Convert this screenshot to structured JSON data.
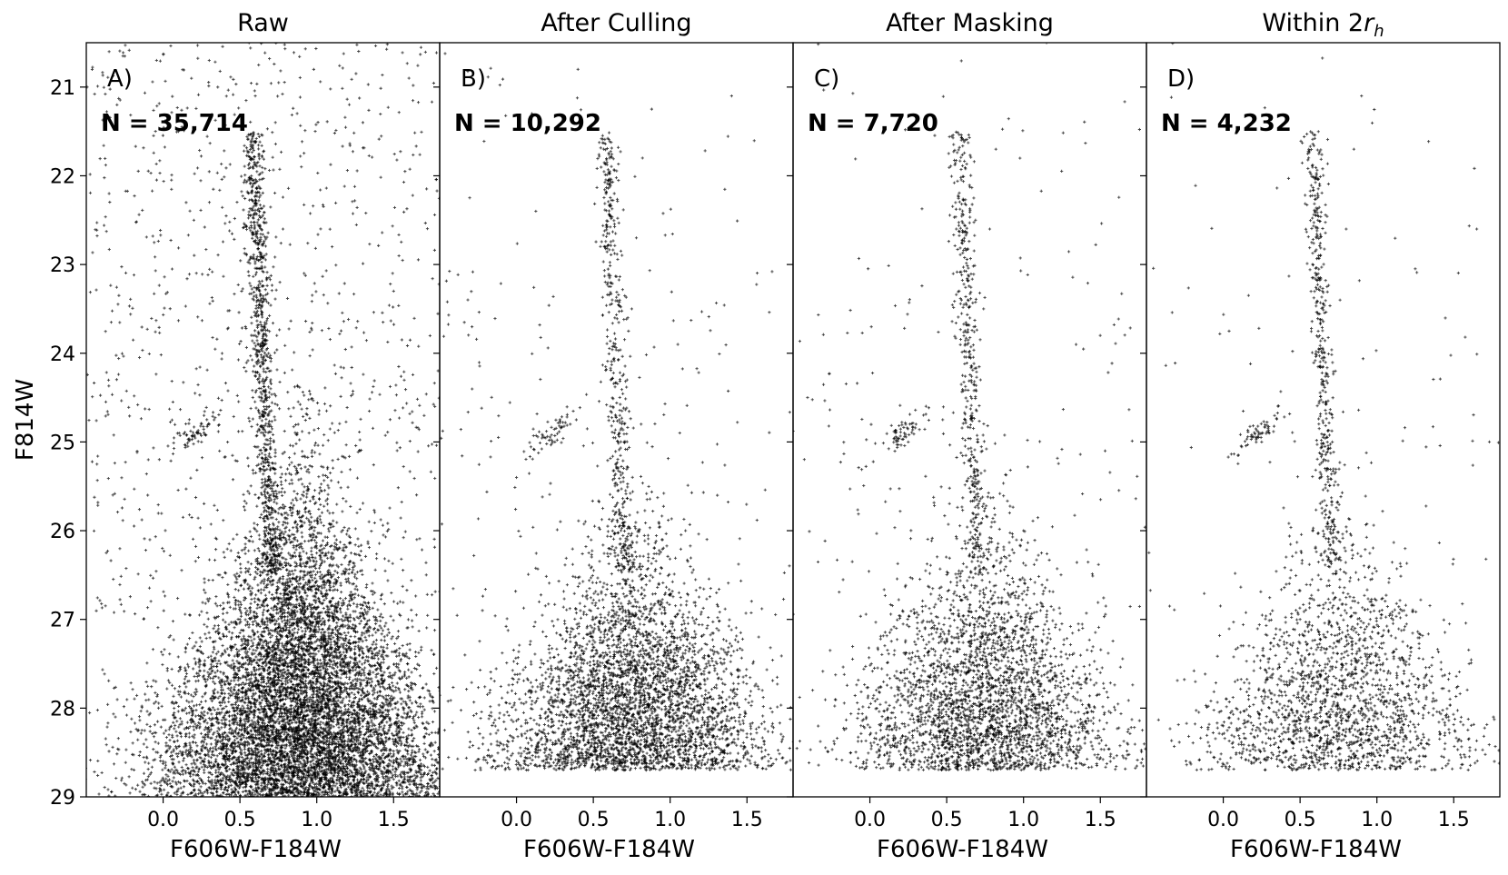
{
  "chart_data": [
    {
      "type": "scatter",
      "panel_title": "Raw",
      "label": "A)",
      "count_text": "N = 35,714",
      "xlabel": "F606W-F184W",
      "ylabel": "F814W",
      "xlim": [
        -0.5,
        1.8
      ],
      "ylim": [
        29.0,
        20.5
      ],
      "y_inverted": true,
      "xticks": [
        "0.0",
        "0.5",
        "1.0",
        "1.5"
      ],
      "yticks": [
        "21",
        "22",
        "23",
        "24",
        "25",
        "26",
        "27",
        "28",
        "29"
      ],
      "marker": "+",
      "color": "#000000",
      "sample_points": [
        [
          -0.3,
          21.2
        ],
        [
          0.1,
          21.5
        ],
        [
          0.3,
          20.7
        ],
        [
          0.6,
          21.1
        ],
        [
          0.9,
          21.9
        ],
        [
          1.3,
          21.4
        ],
        [
          1.6,
          20.9
        ],
        [
          0.2,
          22.5
        ],
        [
          1.1,
          22.8
        ],
        [
          1.5,
          23.3
        ],
        [
          0.78,
          22.6
        ],
        [
          0.76,
          23.2
        ],
        [
          0.74,
          23.8
        ],
        [
          0.7,
          24.4
        ],
        [
          0.72,
          25.0
        ],
        [
          0.25,
          25.0
        ],
        [
          0.3,
          24.8
        ],
        [
          -0.1,
          25.6
        ],
        [
          0.4,
          26.3
        ],
        [
          0.7,
          26.0
        ],
        [
          1.2,
          26.0
        ],
        [
          0.5,
          27.0
        ],
        [
          0.9,
          27.2
        ],
        [
          1.4,
          27.5
        ],
        [
          0.3,
          28.0
        ],
        [
          0.7,
          28.2
        ],
        [
          1.1,
          28.3
        ],
        [
          1.6,
          28.1
        ],
        [
          0.0,
          28.6
        ],
        [
          0.5,
          28.7
        ],
        [
          0.9,
          28.8
        ],
        [
          1.3,
          28.6
        ],
        [
          -0.2,
          28.9
        ],
        [
          1.7,
          28.4
        ]
      ]
    },
    {
      "type": "scatter",
      "panel_title": "After Culling",
      "label": "B)",
      "count_text": "N = 10,292",
      "xlabel": "F606W-F184W",
      "xlim": [
        -0.5,
        1.8
      ],
      "ylim": [
        29.0,
        20.5
      ],
      "y_inverted": true,
      "xticks": [
        "0.0",
        "0.5",
        "1.0",
        "1.5"
      ],
      "marker": "+",
      "color": "#000000",
      "sample_points": [
        [
          0.1,
          21.3
        ],
        [
          0.4,
          20.8
        ],
        [
          1.4,
          21.1
        ],
        [
          0.82,
          21.8
        ],
        [
          0.78,
          22.7
        ],
        [
          0.75,
          23.5
        ],
        [
          0.72,
          24.3
        ],
        [
          0.7,
          25.0
        ],
        [
          0.25,
          25.0
        ],
        [
          0.35,
          24.8
        ],
        [
          0.0,
          25.4
        ],
        [
          0.6,
          26.2
        ],
        [
          1.1,
          26.0
        ],
        [
          0.5,
          27.0
        ],
        [
          0.9,
          27.3
        ],
        [
          1.4,
          27.3
        ],
        [
          0.2,
          28.1
        ],
        [
          0.6,
          28.3
        ],
        [
          1.0,
          28.1
        ],
        [
          0.4,
          28.6
        ],
        [
          0.7,
          28.7
        ],
        [
          -0.1,
          28.4
        ],
        [
          1.6,
          27.8
        ]
      ]
    },
    {
      "type": "scatter",
      "panel_title": "After Masking",
      "label": "C)",
      "count_text": "N = 7,720",
      "xlabel": "F606W-F184W",
      "xlim": [
        -0.5,
        1.8
      ],
      "ylim": [
        29.0,
        20.5
      ],
      "y_inverted": true,
      "xticks": [
        "0.0",
        "0.5",
        "1.0",
        "1.5"
      ],
      "marker": "+",
      "color": "#000000",
      "sample_points": [
        [
          1.15,
          20.5
        ],
        [
          0.82,
          21.7
        ],
        [
          0.78,
          22.6
        ],
        [
          0.74,
          23.5
        ],
        [
          0.72,
          24.3
        ],
        [
          0.7,
          25.0
        ],
        [
          0.25,
          25.0
        ],
        [
          0.3,
          24.8
        ],
        [
          0.6,
          26.2
        ],
        [
          1.0,
          26.0
        ],
        [
          0.4,
          27.1
        ],
        [
          0.8,
          27.3
        ],
        [
          1.3,
          27.4
        ],
        [
          0.3,
          28.0
        ],
        [
          0.6,
          28.2
        ],
        [
          0.9,
          28.0
        ],
        [
          0.5,
          28.6
        ],
        [
          0.0,
          28.3
        ],
        [
          1.5,
          27.6
        ]
      ]
    },
    {
      "type": "scatter",
      "panel_title": "Within 2rh",
      "label": "D)",
      "count_text": "N = 4,232",
      "xlabel": "F606W-F184W",
      "xlim": [
        -0.5,
        1.8
      ],
      "ylim": [
        29.0,
        20.5
      ],
      "y_inverted": true,
      "xticks": [
        "0.0",
        "0.5",
        "1.0",
        "1.5"
      ],
      "marker": "+",
      "color": "#000000",
      "sample_points": [
        [
          0.9,
          21.1
        ],
        [
          0.85,
          21.7
        ],
        [
          0.8,
          22.6
        ],
        [
          0.76,
          23.4
        ],
        [
          0.73,
          24.2
        ],
        [
          0.71,
          25.0
        ],
        [
          0.25,
          25.0
        ],
        [
          0.3,
          24.9
        ],
        [
          0.6,
          26.2
        ],
        [
          0.5,
          27.0
        ],
        [
          0.8,
          27.2
        ],
        [
          1.2,
          27.3
        ],
        [
          0.3,
          28.0
        ],
        [
          0.6,
          28.1
        ],
        [
          0.9,
          28.0
        ],
        [
          0.4,
          28.5
        ],
        [
          0.0,
          28.2
        ],
        [
          1.6,
          27.5
        ],
        [
          1.65,
          22.6
        ]
      ]
    }
  ]
}
